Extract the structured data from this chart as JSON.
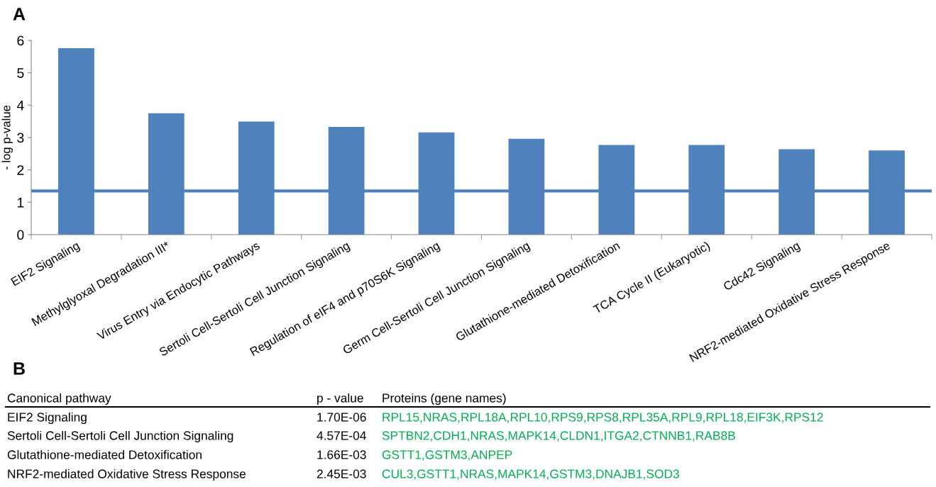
{
  "chart_data": {
    "type": "bar",
    "ylabel": "- log p-value",
    "categories": [
      "EIF2 Signaling",
      "Methylglyoxal Degradation III*",
      "Virus Entry via Endocytic Pathways",
      "Sertoli Cell-Sertoli Cell Junction Signaling",
      "Regulation of eIF4 and p70S6K Signaling",
      "Germ Cell-Sertoli Cell Junction Signaling",
      "Glutathione-mediated Detoxification",
      "TCA Cycle II (Eukaryotic)",
      "Cdc42 Signaling",
      "NRF2-mediated Oxidative Stress Response"
    ],
    "values": [
      5.76,
      3.75,
      3.49,
      3.33,
      3.16,
      2.96,
      2.77,
      2.77,
      2.64,
      2.6
    ],
    "color": "#4f81bd",
    "ylim": [
      0,
      6
    ],
    "yticks": [
      0,
      1,
      2,
      3,
      4,
      5,
      6
    ],
    "ref_lines": [
      {
        "axis": "y",
        "value": 1.35,
        "color": "#4f81bd"
      }
    ],
    "annotations": [
      "A",
      "B",
      "Canonical pathway",
      "p - value",
      "Proteins (gene names)",
      "EIF2 Signaling",
      "1.70E-06",
      "RPL15,NRAS,RPL18A,RPL10,RPS9,RPS8,RPL35A,RPL9,RPL18,EIF3K,RPS12",
      "Sertoli Cell-Sertoli Cell Junction Signaling",
      "4.57E-04",
      "SPTBN2,CDH1,NRAS,MAPK14,CLDN1,ITGA2,CTNNB1,RAB8B",
      "Glutathione-mediated Detoxification",
      "1.66E-03",
      "GSTT1,GSTM3,ANPEP",
      "NRF2-mediated Oxidative Stress Response",
      "2.45E-03",
      "CUL3,GSTT1,NRAS,MAPK14,GSTM3,DNAJB1,SOD3"
    ]
  }
}
